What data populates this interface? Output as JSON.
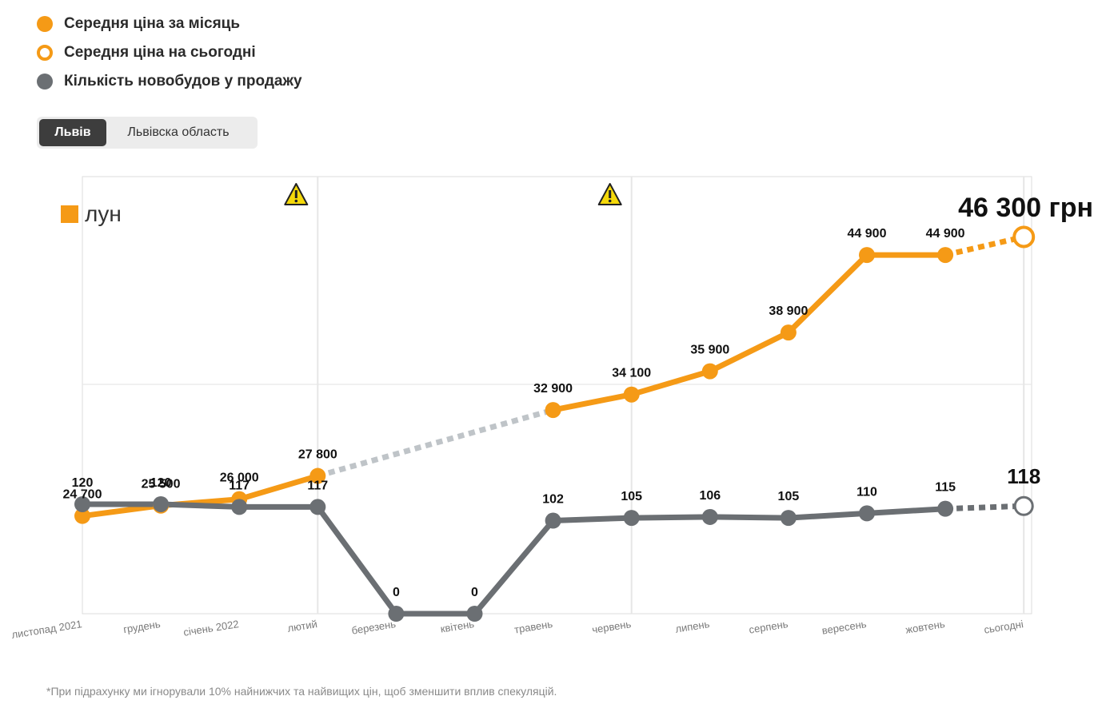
{
  "legend": [
    {
      "label": "Середня ціна за місяць",
      "marker": "filled",
      "color": "#f59a16"
    },
    {
      "label": "Середня ціна на сьогодні",
      "marker": "hollow",
      "color": "#f59a16"
    },
    {
      "label": "Кількість новобудов у продажу",
      "marker": "filled",
      "color": "#6b6f73"
    }
  ],
  "tabs": [
    {
      "label": "Львів",
      "active": true
    },
    {
      "label": "Львівска область",
      "active": false
    }
  ],
  "brand": {
    "name": "лун",
    "logo_color": "#f59a16"
  },
  "footnote": "*При підрахунку ми ігнорували 10% найнижчих та найвищих цін, щоб зменшити вплив спекуляцій.",
  "colors": {
    "price": "#f59a16",
    "count": "#6b6f73",
    "gap": "#bfc4c8",
    "grid": "#e6e6e6",
    "warning": "#f5d90a"
  },
  "chart_data": {
    "type": "line",
    "categories": [
      "листопад 2021",
      "грудень",
      "січень 2022",
      "лютий",
      "березень",
      "квітень",
      "травень",
      "червень",
      "липень",
      "серпень",
      "вересень",
      "жовтень",
      "сьогодні"
    ],
    "series": [
      {
        "name": "Середня ціна за місяць",
        "values": [
          24700,
          25500,
          26000,
          27800,
          null,
          null,
          32900,
          34100,
          35900,
          38900,
          44900,
          44900,
          46300
        ],
        "labels": [
          "24 700",
          "25 500",
          "26 000",
          "27 800",
          "",
          "",
          "32 900",
          "34 100",
          "35 900",
          "38 900",
          "44 900",
          "44 900",
          "46 300 грн"
        ],
        "today_value": 46300
      },
      {
        "name": "Кількість новобудов у продажу",
        "values": [
          120,
          120,
          117,
          117,
          0,
          0,
          102,
          105,
          106,
          105,
          110,
          115,
          118
        ],
        "labels": [
          "120",
          "120",
          "117",
          "117",
          "0",
          "0",
          "102",
          "105",
          "106",
          "105",
          "110",
          "115",
          "118"
        ],
        "today_value": 118
      }
    ],
    "warnings_at": [
      "лютий",
      "червень"
    ],
    "price_range": [
      22500,
      50500
    ],
    "count_range": [
      0,
      300
    ]
  }
}
